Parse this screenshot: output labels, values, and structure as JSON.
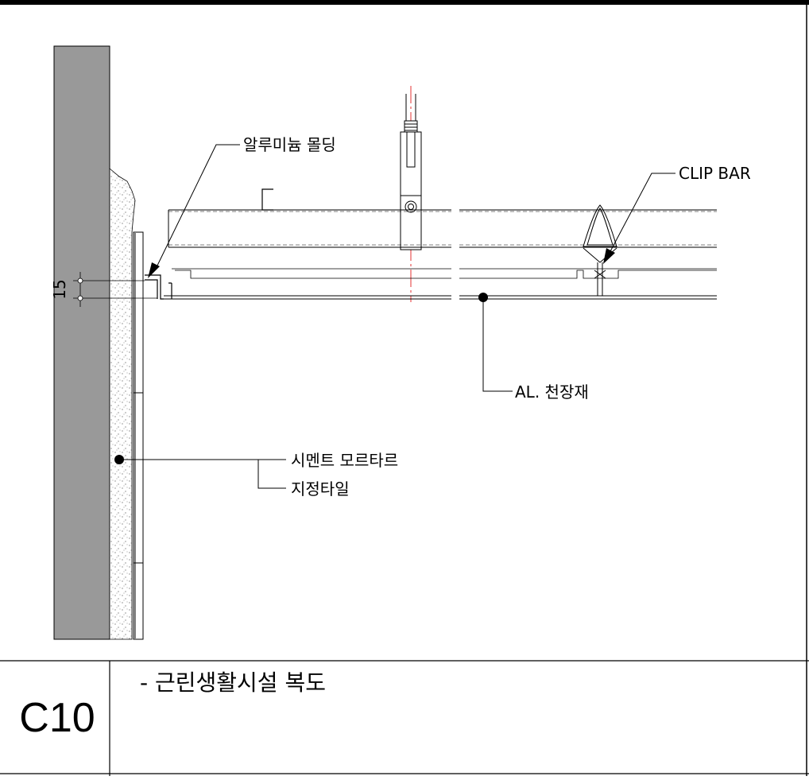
{
  "labels": {
    "aluminum_molding": "알루미늄 몰딩",
    "clip_bar": "CLIP BAR",
    "al_ceiling": "AL. 천장재",
    "cement_mortar": "시멘트 모르타르",
    "designated_tile": "지정타일",
    "dimension": "15"
  },
  "title_block": {
    "code": "C10",
    "description": "- 근린생활시설 복도"
  },
  "colors": {
    "wall": "#999999",
    "line": "#000000",
    "center_line": "#e00000",
    "background": "#ffffff"
  }
}
